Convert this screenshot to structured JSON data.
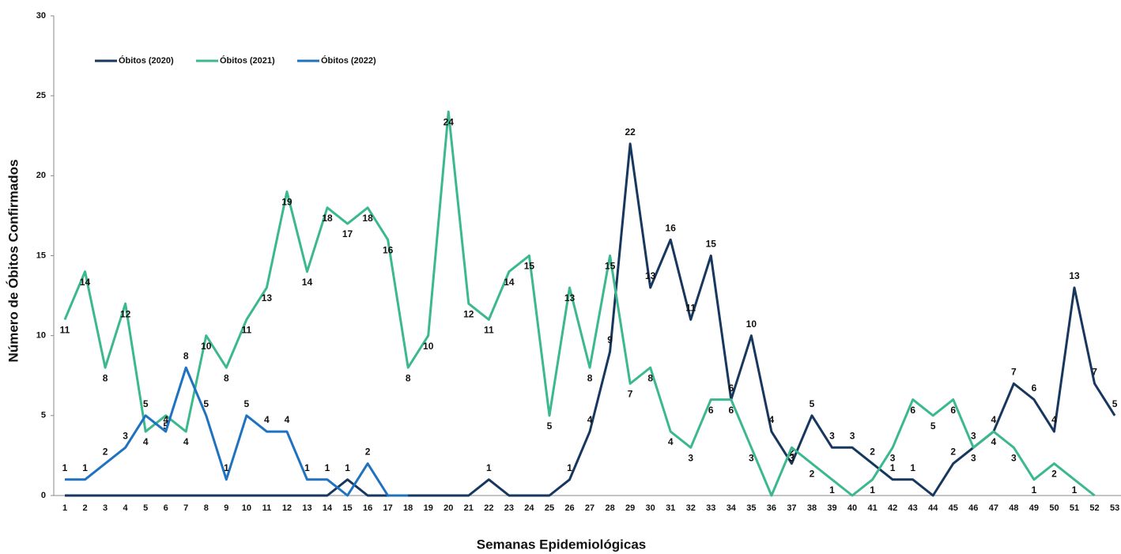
{
  "chart_data": {
    "type": "line",
    "xlabel": "Semanas Epidemiológicas",
    "ylabel": "Número de Óbitos Confirmados",
    "categories": [
      "1",
      "2",
      "3",
      "4",
      "5",
      "6",
      "7",
      "8",
      "9",
      "10",
      "11",
      "12",
      "13",
      "14",
      "15",
      "16",
      "17",
      "18",
      "19",
      "20",
      "21",
      "22",
      "23",
      "24",
      "25",
      "26",
      "27",
      "28",
      "29",
      "30",
      "31",
      "32",
      "33",
      "34",
      "35",
      "36",
      "37",
      "38",
      "39",
      "40",
      "41",
      "42",
      "43",
      "44",
      "45",
      "46",
      "47",
      "48",
      "49",
      "50",
      "51",
      "52",
      "53"
    ],
    "series": [
      {
        "name": "Óbitos (2020)",
        "color": "#17375e",
        "values": [
          0,
          0,
          0,
          0,
          0,
          0,
          0,
          0,
          0,
          0,
          0,
          0,
          0,
          0,
          1,
          0,
          0,
          0,
          0,
          0,
          0,
          1,
          0,
          0,
          0,
          1,
          4,
          9,
          22,
          13,
          16,
          11,
          15,
          6,
          10,
          4,
          2,
          5,
          3,
          3,
          2,
          1,
          1,
          0,
          2,
          3,
          4,
          7,
          6,
          4,
          13,
          7,
          5
        ]
      },
      {
        "name": "Óbitos (2021)",
        "color": "#3cb88e",
        "values": [
          11,
          14,
          8,
          12,
          4,
          5,
          4,
          10,
          8,
          11,
          13,
          19,
          14,
          18,
          17,
          18,
          16,
          8,
          10,
          24,
          12,
          11,
          14,
          15,
          5,
          13,
          8,
          15,
          7,
          8,
          4,
          3,
          6,
          6,
          3,
          0,
          3,
          2,
          1,
          0,
          1,
          3,
          6,
          5,
          6,
          3,
          4,
          3,
          1,
          2,
          1,
          0,
          null
        ]
      },
      {
        "name": "Óbitos (2022)",
        "color": "#1f72c0",
        "values": [
          1,
          1,
          2,
          3,
          5,
          4,
          8,
          5,
          1,
          5,
          4,
          4,
          1,
          1,
          0,
          2,
          0,
          0,
          null,
          null,
          null,
          null,
          null,
          null,
          null,
          null,
          null,
          null,
          null,
          null,
          null,
          null,
          null,
          null,
          null,
          null,
          null,
          null,
          null,
          null,
          null,
          null,
          null,
          null,
          null,
          null,
          null,
          null,
          null,
          null,
          null,
          null,
          null
        ]
      }
    ],
    "ylim": [
      0,
      30
    ],
    "yticks": [
      0,
      5,
      10,
      15,
      20,
      25,
      30
    ],
    "legend": "top-left"
  }
}
